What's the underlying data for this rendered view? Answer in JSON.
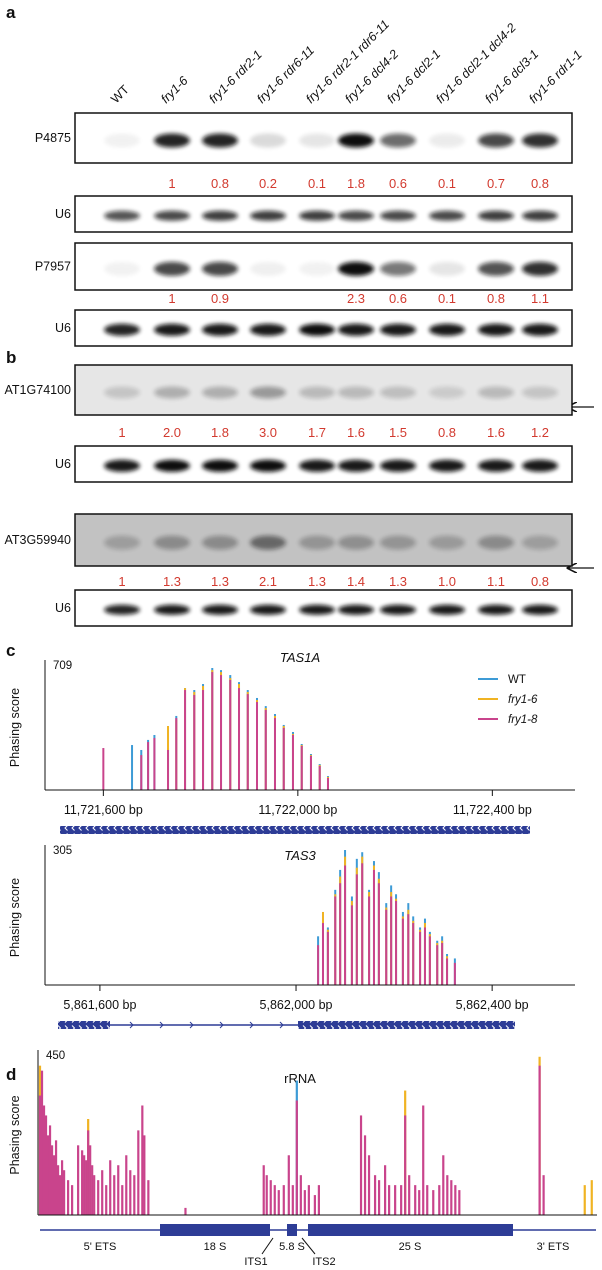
{
  "panel_labels": [
    "a",
    "b",
    "c",
    "d"
  ],
  "lanes": [
    "WT",
    "fry1-6",
    "fry1-6 rdr2-1",
    "fry1-6 rdr6-11",
    "fry1-6 rdr2-1 rdr6-11",
    "fry1-6 dcl4-2",
    "fry1-6 dcl2-1",
    "fry1-6 dcl2-1 dcl4-2",
    "fry1-6 dcl3-1",
    "fry1-6 rdr1-1"
  ],
  "blots": [
    {
      "label": "P4875",
      "values": [
        null,
        "1",
        "0.8",
        "0.2",
        "0.1",
        "1.8",
        "0.6",
        "0.1",
        "0.7",
        "0.8"
      ]
    },
    {
      "label": "U6"
    },
    {
      "label": "P7957",
      "values": [
        null,
        "1",
        "0.9",
        null,
        null,
        "2.3",
        "0.6",
        "0.1",
        "0.8",
        "1.1"
      ]
    },
    {
      "label": "U6"
    },
    {
      "label": "AT1G74100",
      "values": [
        "1",
        "2.0",
        "1.8",
        "3.0",
        "1.7",
        "1.6",
        "1.5",
        "0.8",
        "1.6",
        "1.2"
      ]
    },
    {
      "label": "U6"
    },
    {
      "label": "AT3G59940",
      "values": [
        "1",
        "1.3",
        "1.3",
        "2.1",
        "1.3",
        "1.4",
        "1.3",
        "1.0",
        "1.1",
        "0.8"
      ]
    },
    {
      "label": "U6"
    }
  ],
  "chart_data": [
    {
      "type": "bar",
      "title": "TAS1A",
      "ylabel": "Phasing score",
      "ylim": [
        0,
        709
      ],
      "yticks": [
        709
      ],
      "xlim": [
        11721480,
        11722570
      ],
      "xticks": [
        {
          "value": 11721600,
          "label": "11,721,600 bp"
        },
        {
          "value": 11722000,
          "label": "11,722,000 bp"
        },
        {
          "value": 11722400,
          "label": "11,722,400 bp"
        }
      ],
      "legend": "upper right",
      "x": [
        11721600,
        11721659,
        11721678,
        11721692,
        11721705,
        11721733,
        11721750,
        11721768,
        11721787,
        11721805,
        11721824,
        11721842,
        11721861,
        11721879,
        11721897,
        11721916,
        11721934,
        11721953,
        11721971,
        11721990,
        11722008,
        11722027,
        11722045,
        11722062
      ],
      "series": [
        {
          "name": "WT",
          "color": "#3d9bd6",
          "values": [
            null,
            255,
            227,
            284,
            312,
            238,
            420,
            578,
            567,
            601,
            692,
            680,
            652,
            612,
            567,
            522,
            476,
            431,
            369,
            329,
            261,
            204,
            147,
            79
          ]
        },
        {
          "name": "fry1-6",
          "color": "#f0b323",
          "values": [
            null,
            null,
            null,
            null,
            null,
            363,
            397,
            578,
            556,
            590,
            680,
            669,
            635,
            601,
            556,
            510,
            465,
            420,
            363,
            318,
            255,
            198,
            142,
            74
          ]
        },
        {
          "name": "fry1-8",
          "color": "#c9448c",
          "values": [
            238,
            null,
            198,
            272,
            295,
            227,
            408,
            567,
            539,
            567,
            669,
            652,
            624,
            578,
            544,
            499,
            454,
            408,
            352,
            312,
            250,
            193,
            136,
            68
          ]
        }
      ]
    },
    {
      "type": "bar",
      "title": "TAS3",
      "ylabel": "Phasing score",
      "ylim": [
        0,
        305
      ],
      "yticks": [
        305
      ],
      "xlim": [
        5861488,
        5862569
      ],
      "xticks": [
        {
          "value": 5861600,
          "label": "5,861,600 bp"
        },
        {
          "value": 5862000,
          "label": "5,862,000 bp"
        },
        {
          "value": 5862400,
          "label": "5,862,400 bp"
        }
      ],
      "x": [
        5862045,
        5862055,
        5862065,
        5862080,
        5862090,
        5862100,
        5862114,
        5862124,
        5862135,
        5862149,
        5862159,
        5862169,
        5862184,
        5862194,
        5862204,
        5862218,
        5862229,
        5862239,
        5862253,
        5862263,
        5862273,
        5862288,
        5862298,
        5862308,
        5862324
      ],
      "series": [
        {
          "color": "#3d9bd6",
          "values": [
            110,
            150,
            130,
            215,
            260,
            305,
            200,
            285,
            300,
            215,
            280,
            255,
            185,
            225,
            205,
            165,
            185,
            155,
            130,
            150,
            120,
            100,
            110,
            70,
            60
          ]
        },
        {
          "color": "#f0b323",
          "values": [
            null,
            165,
            125,
            205,
            245,
            290,
            190,
            265,
            290,
            210,
            270,
            240,
            175,
            210,
            195,
            155,
            170,
            145,
            125,
            140,
            115,
            95,
            100,
            65,
            null
          ]
        },
        {
          "color": "#c9448c",
          "values": [
            90,
            140,
            120,
            200,
            230,
            270,
            180,
            250,
            275,
            200,
            260,
            230,
            170,
            200,
            190,
            150,
            160,
            140,
            120,
            130,
            110,
            90,
            95,
            60,
            50
          ]
        }
      ]
    },
    {
      "type": "bar",
      "title": "rRNA",
      "ylabel": "Phasing score",
      "ylim": [
        0,
        450
      ],
      "yticks": [
        450
      ],
      "xlim": [
        0,
        10030
      ],
      "series": [
        {
          "color": "#3d9bd6",
          "x": [
            4644
          ],
          "values": [
            378
          ]
        },
        {
          "color": "#f0b323",
          "x": [
            36,
            900,
            6588,
            9000,
            9810,
            9936
          ],
          "values": [
            420,
            270,
            350,
            445,
            84,
            98
          ]
        },
        {
          "color": "#c9448c",
          "x": [
            36,
            72,
            108,
            144,
            180,
            216,
            252,
            288,
            324,
            360,
            396,
            432,
            468,
            540,
            612,
            720,
            792,
            828,
            864,
            900,
            936,
            972,
            1008,
            1080,
            1152,
            1224,
            1296,
            1368,
            1440,
            1512,
            1584,
            1656,
            1728,
            1800,
            1872,
            1908,
            1980,
            2646,
            4050,
            4104,
            4176,
            4248,
            4320,
            4410,
            4500,
            4572,
            4644,
            4716,
            4788,
            4860,
            4968,
            5040,
            5796,
            5868,
            5940,
            6048,
            6120,
            6228,
            6300,
            6408,
            6516,
            6588,
            6660,
            6768,
            6840,
            6912,
            6984,
            7092,
            7200,
            7272,
            7344,
            7416,
            7488,
            7560,
            9000,
            9072
          ],
          "values": [
            336,
            406,
            308,
            280,
            224,
            252,
            196,
            168,
            210,
            140,
            112,
            154,
            126,
            98,
            84,
            196,
            182,
            168,
            154,
            238,
            196,
            140,
            112,
            98,
            126,
            84,
            154,
            112,
            140,
            84,
            168,
            126,
            112,
            238,
            308,
            224,
            98,
            20,
            140,
            112,
            98,
            84,
            70,
            84,
            168,
            84,
            322,
            112,
            70,
            84,
            56,
            84,
            280,
            224,
            168,
            112,
            98,
            140,
            84,
            84,
            84,
            280,
            112,
            84,
            70,
            308,
            84,
            70,
            84,
            168,
            112,
            98,
            84,
            70,
            420,
            112
          ]
        }
      ]
    }
  ],
  "rrna_regions": [
    "5' ETS",
    "18 S",
    "5.8 S",
    "25 S",
    "3' ETS",
    "ITS1",
    "ITS2"
  ]
}
